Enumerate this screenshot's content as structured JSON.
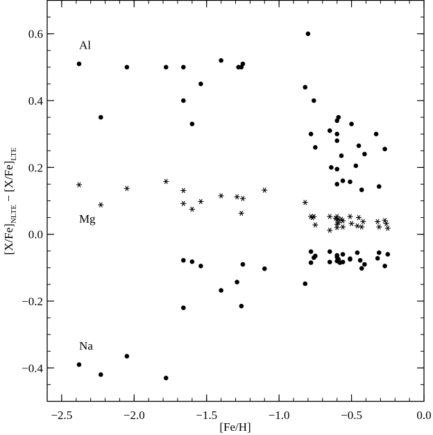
{
  "chart_data": {
    "type": "scatter",
    "title": "",
    "xlabel": "[Fe/H]",
    "ylabel": {
      "prefix": "[X/Fe]",
      "sub1": "NLTE",
      "mid": " − [X/Fe]",
      "sub2": "LTE"
    },
    "xlim": [
      -2.6,
      0.0
    ],
    "ylim": [
      -0.5,
      0.7
    ],
    "x_ticks": [
      {
        "value": -2.5,
        "label": "−2.5"
      },
      {
        "value": -2.0,
        "label": "−2.0"
      },
      {
        "value": -1.5,
        "label": "−1.5"
      },
      {
        "value": -1.0,
        "label": "−1.0"
      },
      {
        "value": -0.5,
        "label": "−0.5"
      },
      {
        "value": 0.0,
        "label": "0.0"
      }
    ],
    "y_ticks": [
      {
        "value": -0.4,
        "label": "−0.4"
      },
      {
        "value": -0.2,
        "label": "−0.2"
      },
      {
        "value": 0.0,
        "label": "0.0"
      },
      {
        "value": 0.2,
        "label": "0.2"
      },
      {
        "value": 0.4,
        "label": "0.4"
      },
      {
        "value": 0.6,
        "label": "0.6"
      }
    ],
    "x_minor_step": 0.1,
    "y_minor_step": 0.05,
    "grid": false,
    "annotations": [
      {
        "text": "Al",
        "x": -2.38,
        "y": 0.555
      },
      {
        "text": "Mg",
        "x": -2.38,
        "y": 0.035
      },
      {
        "text": "Na",
        "x": -2.38,
        "y": -0.345
      }
    ],
    "series": [
      {
        "marker": "dot",
        "color": "#000000",
        "points": [
          [
            -2.38,
            0.51
          ],
          [
            -2.05,
            0.5
          ],
          [
            -1.78,
            0.5
          ],
          [
            -1.66,
            0.5
          ],
          [
            -1.66,
            0.4
          ],
          [
            -1.6,
            0.33
          ],
          [
            -1.54,
            0.45
          ],
          [
            -1.4,
            0.52
          ],
          [
            -1.28,
            0.5
          ],
          [
            -1.26,
            0.5
          ],
          [
            -1.25,
            0.51
          ],
          [
            -2.23,
            0.35
          ],
          [
            -0.8,
            0.6
          ],
          [
            -0.82,
            0.44
          ],
          [
            -0.76,
            0.4
          ],
          [
            -0.65,
            0.31
          ],
          [
            -0.6,
            0.34
          ],
          [
            -0.59,
            0.35
          ],
          [
            -0.6,
            0.3
          ],
          [
            -0.6,
            0.28
          ],
          [
            -0.5,
            0.33
          ],
          [
            -0.33,
            0.3
          ],
          [
            -0.78,
            0.3
          ],
          [
            -0.75,
            0.26
          ],
          [
            -0.57,
            0.235
          ],
          [
            -0.45,
            0.265
          ],
          [
            -0.41,
            0.24
          ],
          [
            -0.27,
            0.255
          ],
          [
            -0.64,
            0.2
          ],
          [
            -0.6,
            0.195
          ],
          [
            -0.47,
            0.205
          ],
          [
            -0.56,
            0.16
          ],
          [
            -0.51,
            0.157
          ],
          [
            -0.6,
            0.15
          ],
          [
            -0.31,
            0.143
          ],
          [
            -0.43,
            0.133
          ],
          [
            -1.66,
            -0.078
          ],
          [
            -1.6,
            -0.082
          ],
          [
            -1.54,
            -0.095
          ],
          [
            -1.25,
            -0.09
          ],
          [
            -1.1,
            -0.103
          ],
          [
            -1.4,
            -0.168
          ],
          [
            -1.29,
            -0.143
          ],
          [
            -1.66,
            -0.22
          ],
          [
            -1.26,
            -0.215
          ],
          [
            -0.82,
            -0.148
          ],
          [
            -0.78,
            -0.052
          ],
          [
            -0.76,
            -0.07
          ],
          [
            -0.75,
            -0.065
          ],
          [
            -0.78,
            -0.085
          ],
          [
            -0.65,
            -0.052
          ],
          [
            -0.6,
            -0.063
          ],
          [
            -0.6,
            -0.068
          ],
          [
            -0.59,
            -0.075
          ],
          [
            -0.6,
            -0.08
          ],
          [
            -0.58,
            -0.085
          ],
          [
            -0.56,
            -0.06
          ],
          [
            -0.56,
            -0.083
          ],
          [
            -0.51,
            -0.073
          ],
          [
            -0.51,
            -0.075
          ],
          [
            -0.46,
            -0.055
          ],
          [
            -0.44,
            -0.078
          ],
          [
            -0.43,
            -0.102
          ],
          [
            -0.41,
            -0.09
          ],
          [
            -0.31,
            -0.055
          ],
          [
            -0.32,
            -0.072
          ],
          [
            -0.27,
            -0.095
          ],
          [
            -0.25,
            -0.06
          ],
          [
            -0.65,
            -0.083
          ],
          [
            -2.38,
            -0.39
          ],
          [
            -2.23,
            -0.42
          ],
          [
            -2.05,
            -0.365
          ],
          [
            -1.78,
            -0.43
          ]
        ]
      },
      {
        "marker": "asterisk",
        "color": "#000000",
        "points": [
          [
            -2.38,
            0.148
          ],
          [
            -2.23,
            0.088
          ],
          [
            -2.05,
            0.137
          ],
          [
            -1.78,
            0.158
          ],
          [
            -1.66,
            0.131
          ],
          [
            -1.66,
            0.092
          ],
          [
            -1.6,
            0.075
          ],
          [
            -1.54,
            0.098
          ],
          [
            -1.4,
            0.115
          ],
          [
            -1.29,
            0.112
          ],
          [
            -1.25,
            0.107
          ],
          [
            -1.26,
            0.063
          ],
          [
            -1.1,
            0.132
          ],
          [
            -0.82,
            0.095
          ],
          [
            -0.78,
            0.053
          ],
          [
            -0.77,
            0.05
          ],
          [
            -0.76,
            0.053
          ],
          [
            -0.75,
            0.028
          ],
          [
            -0.65,
            0.053
          ],
          [
            -0.65,
            0.012
          ],
          [
            -0.61,
            0.048
          ],
          [
            -0.6,
            0.053
          ],
          [
            -0.6,
            0.043
          ],
          [
            -0.59,
            0.035
          ],
          [
            -0.59,
            0.045
          ],
          [
            -0.57,
            0.045
          ],
          [
            -0.56,
            0.04
          ],
          [
            -0.56,
            0.022
          ],
          [
            -0.51,
            0.053
          ],
          [
            -0.5,
            0.032
          ],
          [
            -0.46,
            0.025
          ],
          [
            -0.45,
            0.05
          ],
          [
            -0.42,
            0.038
          ],
          [
            -0.43,
            0.022
          ],
          [
            -0.32,
            0.038
          ],
          [
            -0.31,
            0.022
          ],
          [
            -0.27,
            0.041
          ],
          [
            -0.26,
            0.032
          ],
          [
            -0.25,
            0.018
          ],
          [
            -0.6,
            0.02
          ],
          [
            -0.6,
            0.03
          ]
        ]
      }
    ]
  }
}
